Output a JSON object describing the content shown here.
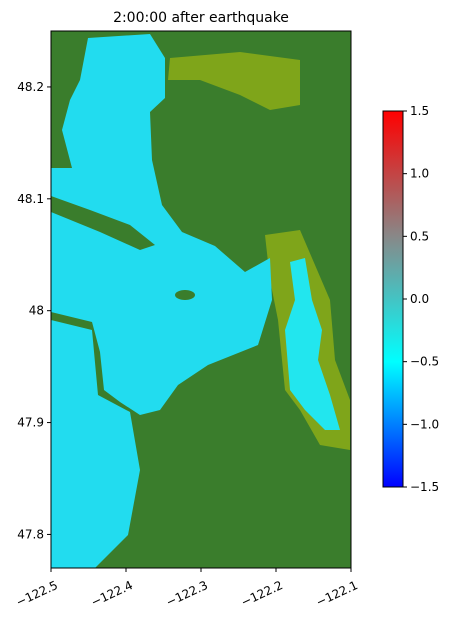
{
  "chart_data": {
    "type": "map",
    "title": "2:00:00 after earthquake",
    "xlim": [
      -122.5,
      -122.1
    ],
    "xticks": [
      {
        "value": -122.5,
        "label": "−122.5"
      },
      {
        "value": -122.4,
        "label": "−122.4"
      },
      {
        "value": -122.3,
        "label": "−122.3"
      },
      {
        "value": -122.2,
        "label": "−122.2"
      },
      {
        "value": -122.1,
        "label": "−122.1"
      }
    ],
    "ylim": [
      47.77,
      48.25
    ],
    "yticks": [
      47.8,
      47.9,
      48.0,
      48.1,
      48.2
    ],
    "colorbar": {
      "clim": [
        -1.5,
        1.5
      ],
      "ticks": [
        {
          "value": -1.5,
          "label": "−1.5"
        },
        {
          "value": -1.0,
          "label": "−1.0"
        },
        {
          "value": -0.5,
          "label": "−0.5"
        },
        {
          "value": 0,
          "label": "0.0"
        },
        0.5,
        {
          "value": 1.0,
          "label": "1.0"
        },
        1.5
      ],
      "colormap": [
        "#0000ff",
        "#00ffff",
        "#888888",
        "#ff0000"
      ]
    }
  }
}
